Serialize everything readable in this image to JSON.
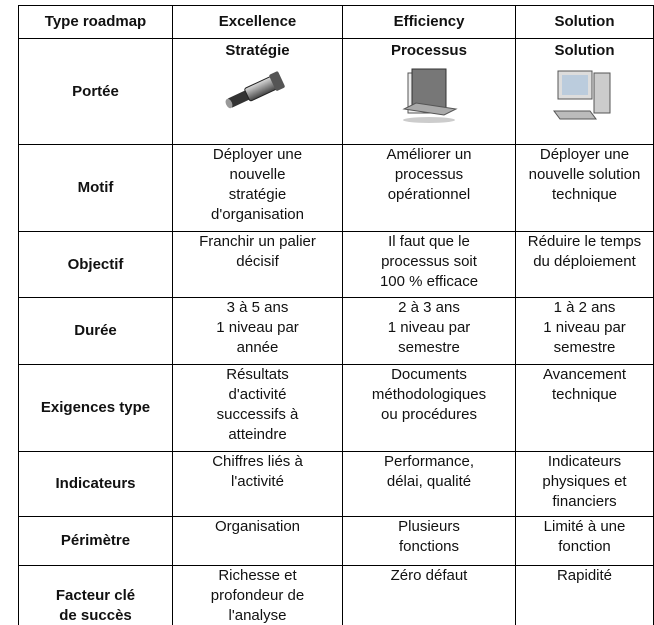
{
  "table": {
    "header": [
      "Type roadmap",
      "Excellence",
      "Efficiency",
      "Solution"
    ],
    "rows": [
      {
        "label": "Portée",
        "cells": [
          [
            "Stratégie"
          ],
          [
            "Processus"
          ],
          [
            "Solution"
          ]
        ]
      },
      {
        "label": "Motif",
        "cells": [
          [
            "Déployer une",
            "nouvelle",
            "stratégie",
            "d'organisation"
          ],
          [
            "Améliorer un",
            "processus",
            "opérationnel"
          ],
          [
            "Déployer une",
            "nouvelle solution",
            "technique"
          ]
        ]
      },
      {
        "label": "Objectif",
        "cells": [
          [
            "Franchir un palier",
            "décisif"
          ],
          [
            "Il faut que le",
            "processus soit",
            "100 % efficace"
          ],
          [
            "Réduire le temps",
            "du déploiement"
          ]
        ]
      },
      {
        "label": "Durée",
        "cells": [
          [
            "3 à 5 ans",
            "1 niveau par",
            "année"
          ],
          [
            "2 à 3 ans",
            "1 niveau par",
            "semestre"
          ],
          [
            "1 à 2 ans",
            "1 niveau par",
            "semestre"
          ]
        ]
      },
      {
        "label": "Exigences type",
        "cells": [
          [
            "Résultats",
            "d'activité",
            "successifs à",
            "atteindre"
          ],
          [
            "Documents",
            "méthodologiques",
            "ou procédures"
          ],
          [
            "Avancement",
            "technique"
          ]
        ]
      },
      {
        "label": "Indicateurs",
        "cells": [
          [
            "Chiffres liés à",
            "l'activité"
          ],
          [
            "Performance,",
            "délai, qualité"
          ],
          [
            "Indicateurs",
            "physiques et",
            "financiers"
          ]
        ]
      },
      {
        "label": "Périmètre",
        "cells": [
          [
            "Organisation"
          ],
          [
            "Plusieurs",
            "fonctions"
          ],
          [
            "Limité à une",
            "fonction"
          ]
        ]
      },
      {
        "label": [
          "Facteur clé",
          "de succès"
        ],
        "cells": [
          [
            "Richesse et",
            "profondeur de",
            "l'analyse"
          ],
          [
            "Zéro défaut"
          ],
          [
            "Rapidité"
          ]
        ]
      }
    ]
  }
}
